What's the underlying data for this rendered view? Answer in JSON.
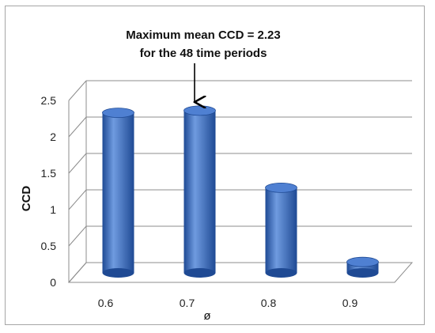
{
  "chart_data": {
    "type": "bar",
    "style": "3d-cylinder",
    "categories": [
      "0.6",
      "0.7",
      "0.8",
      "0.9"
    ],
    "values": [
      2.2,
      2.23,
      1.17,
      0.15
    ],
    "ylim": [
      0,
      2.5
    ],
    "yticks": [
      "0",
      "0.5",
      "1",
      "1.5",
      "2",
      "2.5"
    ],
    "ylabel": "CCD",
    "xlabel": "ø",
    "grid": true,
    "legend": "none",
    "annotation": {
      "lines": [
        "Maximum mean CCD = 2.23",
        "for the 48 time periods"
      ],
      "target_category": "0.7"
    },
    "colors": {
      "bar_light": "#6f9be0",
      "bar_mid": "#3c6fc6",
      "bar_dark": "#1f4a94",
      "bar_top": "#4f80d2",
      "grid": "#8c8c8c"
    }
  }
}
